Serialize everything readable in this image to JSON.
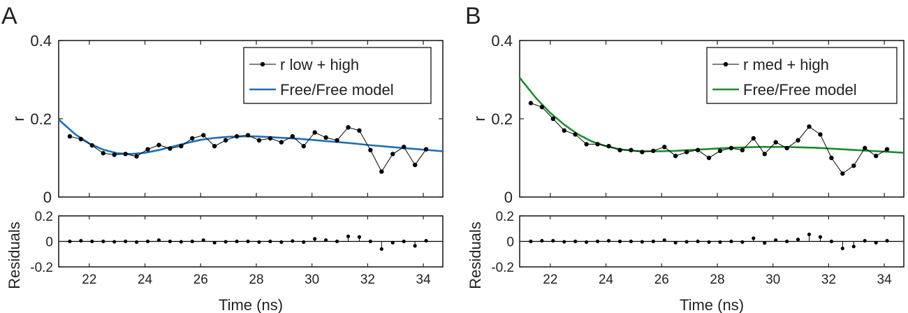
{
  "figure": {
    "panels": [
      "A",
      "B"
    ]
  },
  "chart_data": [
    {
      "panel": "A",
      "type": "line",
      "xlabel": "Time (ns)",
      "ylabel": "r",
      "residuals_ylabel": "Residuals",
      "xlim": [
        20.9,
        34.7
      ],
      "ylim": [
        0,
        0.4
      ],
      "residuals_ylim": [
        -0.2,
        0.2
      ],
      "xticks": [
        22,
        24,
        26,
        28,
        30,
        32,
        34
      ],
      "yticks": [
        0,
        0.2,
        0.4
      ],
      "residuals_yticks": [
        -0.2,
        0,
        0.2
      ],
      "legend_position": "top-right",
      "legend": {
        "data_label": "r low + high",
        "model_label": "Free/Free model"
      },
      "colors": {
        "data": "#000000",
        "model": "#1f6fb5"
      },
      "series": {
        "data": {
          "x": [
            21.3,
            21.7,
            22.1,
            22.5,
            22.9,
            23.3,
            23.7,
            24.1,
            24.5,
            24.9,
            25.3,
            25.7,
            26.1,
            26.5,
            26.9,
            27.3,
            27.7,
            28.1,
            28.5,
            28.9,
            29.3,
            29.7,
            30.1,
            30.5,
            30.9,
            31.3,
            31.7,
            32.1,
            32.5,
            32.9,
            33.3,
            33.7,
            34.1
          ],
          "y": [
            0.155,
            0.148,
            0.132,
            0.112,
            0.108,
            0.11,
            0.104,
            0.122,
            0.133,
            0.124,
            0.13,
            0.15,
            0.158,
            0.13,
            0.145,
            0.155,
            0.158,
            0.145,
            0.15,
            0.14,
            0.155,
            0.13,
            0.165,
            0.152,
            0.145,
            0.178,
            0.17,
            0.12,
            0.065,
            0.11,
            0.128,
            0.082,
            0.122
          ]
        },
        "model": {
          "x": [
            20.9,
            21.5,
            22.0,
            22.5,
            23.0,
            23.5,
            24.0,
            24.5,
            25.0,
            25.5,
            26.0,
            26.5,
            27.0,
            27.5,
            28.0,
            28.5,
            29.0,
            29.5,
            30.0,
            30.5,
            31.0,
            31.5,
            32.0,
            32.5,
            33.0,
            33.5,
            34.0,
            34.7
          ],
          "y": [
            0.198,
            0.16,
            0.137,
            0.121,
            0.112,
            0.11,
            0.113,
            0.12,
            0.129,
            0.138,
            0.146,
            0.151,
            0.154,
            0.155,
            0.155,
            0.153,
            0.151,
            0.149,
            0.146,
            0.143,
            0.14,
            0.137,
            0.133,
            0.13,
            0.127,
            0.124,
            0.121,
            0.117
          ]
        },
        "residuals": {
          "x": [
            21.3,
            21.7,
            22.1,
            22.5,
            22.9,
            23.3,
            23.7,
            24.1,
            24.5,
            24.9,
            25.3,
            25.7,
            26.1,
            26.5,
            26.9,
            27.3,
            27.7,
            28.1,
            28.5,
            28.9,
            29.3,
            29.7,
            30.1,
            30.5,
            30.9,
            31.3,
            31.7,
            32.1,
            32.5,
            32.9,
            33.3,
            33.7,
            34.1
          ],
          "y": [
            0,
            0.005,
            0.0,
            0.0,
            -0.003,
            0.0,
            -0.005,
            0.0,
            0.01,
            0.0,
            -0.003,
            0.0,
            0.01,
            -0.01,
            -0.003,
            0.0,
            0.0,
            -0.005,
            0.0,
            -0.005,
            0.003,
            -0.005,
            0.02,
            0.01,
            0.0,
            0.04,
            0.035,
            0.0,
            -0.06,
            -0.01,
            0.0,
            -0.035,
            0.005
          ]
        }
      }
    },
    {
      "panel": "B",
      "type": "line",
      "xlabel": "Time (ns)",
      "ylabel": "r",
      "residuals_ylabel": "Residuals",
      "xlim": [
        20.9,
        34.7
      ],
      "ylim": [
        0,
        0.4
      ],
      "residuals_ylim": [
        -0.2,
        0.2
      ],
      "xticks": [
        22,
        24,
        26,
        28,
        30,
        32,
        34
      ],
      "yticks": [
        0,
        0.2,
        0.4
      ],
      "residuals_yticks": [
        -0.2,
        0,
        0.2
      ],
      "legend_position": "top-right",
      "legend": {
        "data_label": "r med + high",
        "model_label": "Free/Free model"
      },
      "colors": {
        "data": "#000000",
        "model": "#1e8a2e"
      },
      "series": {
        "data": {
          "x": [
            21.3,
            21.7,
            22.1,
            22.5,
            22.9,
            23.3,
            23.7,
            24.1,
            24.5,
            24.9,
            25.3,
            25.7,
            26.1,
            26.5,
            26.9,
            27.3,
            27.7,
            28.1,
            28.5,
            28.9,
            29.3,
            29.7,
            30.1,
            30.5,
            30.9,
            31.3,
            31.7,
            32.1,
            32.5,
            32.9,
            33.3,
            33.7,
            34.1
          ],
          "y": [
            0.24,
            0.23,
            0.2,
            0.17,
            0.16,
            0.135,
            0.135,
            0.13,
            0.12,
            0.12,
            0.115,
            0.118,
            0.128,
            0.105,
            0.115,
            0.12,
            0.1,
            0.118,
            0.125,
            0.12,
            0.15,
            0.11,
            0.14,
            0.125,
            0.145,
            0.18,
            0.16,
            0.1,
            0.06,
            0.08,
            0.125,
            0.105,
            0.122
          ]
        },
        "model": {
          "x": [
            20.9,
            21.5,
            22.0,
            22.5,
            23.0,
            23.5,
            24.0,
            24.5,
            25.0,
            25.5,
            26.0,
            26.5,
            27.0,
            27.5,
            28.0,
            28.5,
            29.0,
            29.5,
            30.0,
            30.5,
            31.0,
            31.5,
            32.0,
            32.5,
            33.0,
            33.5,
            34.0,
            34.7
          ],
          "y": [
            0.305,
            0.252,
            0.215,
            0.185,
            0.16,
            0.142,
            0.13,
            0.122,
            0.118,
            0.117,
            0.117,
            0.118,
            0.12,
            0.122,
            0.124,
            0.126,
            0.127,
            0.128,
            0.128,
            0.128,
            0.127,
            0.126,
            0.124,
            0.122,
            0.12,
            0.118,
            0.116,
            0.113
          ]
        },
        "residuals": {
          "x": [
            21.3,
            21.7,
            22.1,
            22.5,
            22.9,
            23.3,
            23.7,
            24.1,
            24.5,
            24.9,
            25.3,
            25.7,
            26.1,
            26.5,
            26.9,
            27.3,
            27.7,
            28.1,
            28.5,
            28.9,
            29.3,
            29.7,
            30.1,
            30.5,
            30.9,
            31.3,
            31.7,
            32.1,
            32.5,
            32.9,
            33.3,
            33.7,
            34.1
          ],
          "y": [
            0,
            0.005,
            0.005,
            -0.003,
            0.0,
            -0.005,
            0.0,
            0.005,
            0.0,
            0.0,
            -0.003,
            0.0,
            0.01,
            -0.01,
            -0.003,
            0.0,
            -0.005,
            -0.005,
            0.0,
            -0.005,
            0.025,
            -0.012,
            0.01,
            0.0,
            0.015,
            0.055,
            0.035,
            0.0,
            -0.055,
            -0.04,
            0.005,
            -0.01,
            0.005
          ]
        }
      }
    }
  ]
}
